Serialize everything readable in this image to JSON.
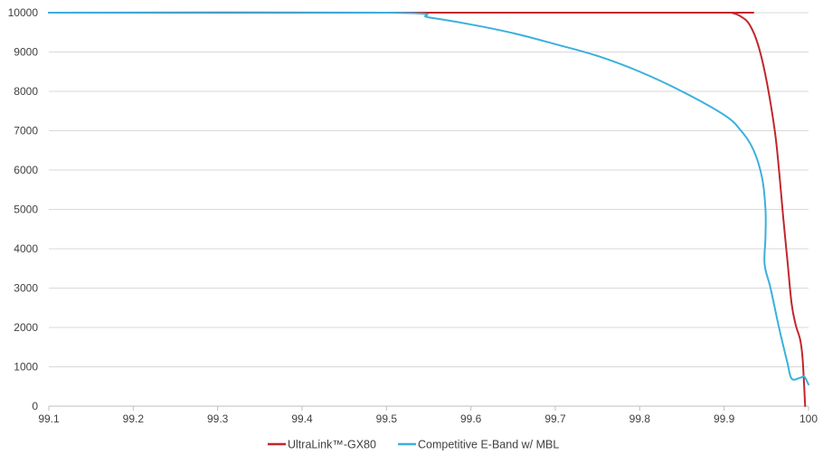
{
  "chart_data": {
    "type": "line",
    "title": "",
    "xlabel": "",
    "ylabel": "",
    "xlim": [
      99.1,
      100
    ],
    "ylim": [
      0,
      10000
    ],
    "x_ticks": [
      "99.1",
      "99.2",
      "99.3",
      "99.4",
      "99.5",
      "99.6",
      "99.7",
      "99.8",
      "99.9",
      "100"
    ],
    "y_ticks": [
      "0",
      "1000",
      "2000",
      "3000",
      "4000",
      "5000",
      "6000",
      "7000",
      "8000",
      "9000",
      "10000"
    ],
    "grid": "horizontal",
    "legend_position": "bottom",
    "series": [
      {
        "name": "UltraLink™-GX80",
        "color": "#c0272d",
        "points": [
          [
            99.1,
            10000
          ],
          [
            99.5,
            10000
          ],
          [
            99.9,
            10000
          ],
          [
            99.91,
            9990
          ],
          [
            99.92,
            9900
          ],
          [
            99.93,
            9700
          ],
          [
            99.94,
            9200
          ],
          [
            99.95,
            8300
          ],
          [
            99.96,
            7000
          ],
          [
            99.965,
            6000
          ],
          [
            99.97,
            4800
          ],
          [
            99.975,
            3700
          ],
          [
            99.98,
            2600
          ],
          [
            99.985,
            2050
          ],
          [
            99.99,
            1700
          ],
          [
            99.993,
            1200
          ],
          [
            99.996,
            0
          ]
        ]
      },
      {
        "name": "Competitive E-Band w/ MBL",
        "color": "#3ab0dd",
        "points": [
          [
            99.1,
            10000
          ],
          [
            99.5,
            10000
          ],
          [
            99.55,
            9880
          ],
          [
            99.6,
            9700
          ],
          [
            99.65,
            9480
          ],
          [
            99.7,
            9200
          ],
          [
            99.75,
            8900
          ],
          [
            99.8,
            8500
          ],
          [
            99.85,
            8000
          ],
          [
            99.9,
            7400
          ],
          [
            99.92,
            7000
          ],
          [
            99.935,
            6500
          ],
          [
            99.945,
            5800
          ],
          [
            99.949,
            5000
          ],
          [
            99.949,
            4300
          ],
          [
            99.948,
            3600
          ],
          [
            99.955,
            3000
          ],
          [
            99.965,
            2000
          ],
          [
            99.975,
            1100
          ],
          [
            99.98,
            700
          ],
          [
            99.99,
            720
          ],
          [
            99.995,
            750
          ],
          [
            100,
            550
          ]
        ]
      }
    ]
  }
}
